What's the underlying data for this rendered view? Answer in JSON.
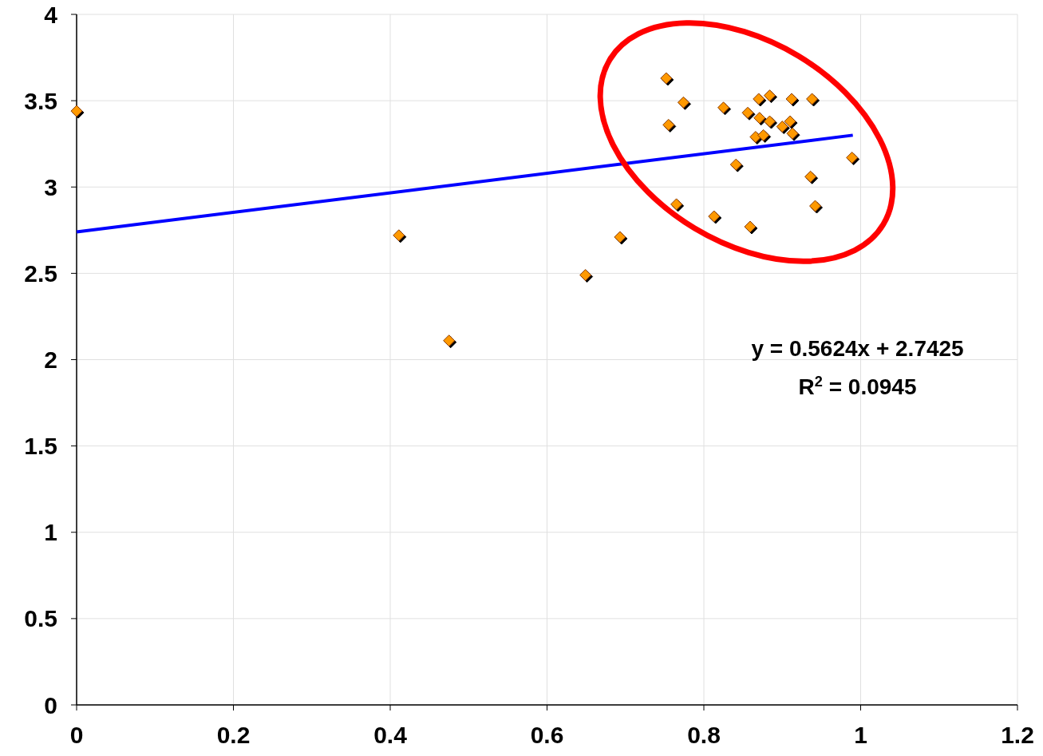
{
  "chart_data": {
    "type": "scatter",
    "xlim": [
      0,
      1.2
    ],
    "xticks": [
      0,
      0.2,
      0.4,
      0.6,
      0.8,
      1,
      1.2
    ],
    "ylim": [
      0,
      4
    ],
    "yticks": [
      0,
      0.5,
      1,
      1.5,
      2,
      2.5,
      3,
      3.5,
      4
    ],
    "grid": true,
    "marker": "diamond",
    "series": [
      {
        "color": "#ff9900",
        "x": [
          0,
          0.411,
          0.475,
          0.649,
          0.693,
          0.752,
          0.755,
          0.774,
          0.765,
          0.825,
          0.841,
          0.813,
          0.859,
          0.856,
          0.87,
          0.884,
          0.871,
          0.866,
          0.876,
          0.884,
          0.9,
          0.91,
          0.913,
          0.912,
          0.938,
          0.936,
          0.942,
          0.989
        ],
        "values": [
          3.44,
          2.72,
          2.11,
          2.49,
          2.71,
          3.63,
          3.36,
          3.49,
          2.9,
          3.46,
          3.13,
          2.83,
          2.77,
          3.43,
          3.51,
          3.53,
          3.4,
          3.29,
          3.3,
          3.38,
          3.35,
          3.38,
          3.31,
          3.51,
          3.51,
          3.06,
          2.89,
          3.17
        ]
      },
      {
        "type": "line",
        "color": "#0000ff",
        "marker": "none",
        "line_style": "solid",
        "x": [
          0,
          0.99
        ],
        "values": [
          2.74,
          3.3
        ]
      }
    ],
    "annotations": [
      "y = 0.5624x + 2.7425",
      "R$^{2}$ = 0.0945"
    ]
  }
}
